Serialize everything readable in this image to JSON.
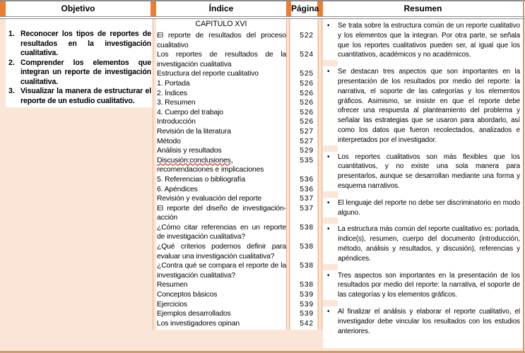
{
  "colors": {
    "page_background": "#FBE5D6",
    "accent_orange": "#ED7D31",
    "gutter_line": "#EDAE87",
    "gray_border": "#8C8C8C",
    "tan_border": "#CE9A6E",
    "spellcheck_red": "#C00000"
  },
  "header": {
    "objetivo": "Objetivo",
    "indice": "Índice",
    "pagina": "Página",
    "resumen": "Resumen"
  },
  "objetivo": {
    "items": [
      {
        "number": "1.",
        "text": "Reconocer los tipos de reportes de resultados en la investigación cualitativa."
      },
      {
        "number": "2.",
        "text": "Comprender los elementos que integran un reporte de investigación cualitativa."
      },
      {
        "number": "3.",
        "text": "Visualizar la manera de estructurar el reporte de un estudio cualitativo."
      }
    ]
  },
  "indice": {
    "chapter_title": "CAPITULO XVI",
    "entries": [
      {
        "text": "El reporte de resultados del proceso cualitativo",
        "page": "522"
      },
      {
        "text": "Los reportes de resultados de la investigación cualitativa",
        "page": "524"
      },
      {
        "text": "Estructura del reporte cualitativo",
        "page": "525"
      },
      {
        "text": "1. Portada",
        "page": "526"
      },
      {
        "text": "2. Índices",
        "page": "526"
      },
      {
        "text": "3. Resumen",
        "page": "526"
      },
      {
        "text": "4. Cuerpo del trabajo",
        "page": "526"
      },
      {
        "text": "Introducción",
        "page": "526"
      },
      {
        "text": "Revisión de la literatura",
        "page": "527"
      },
      {
        "text": "Método",
        "page": "527"
      },
      {
        "text": "Análisis y resultados",
        "page": "529"
      },
      {
        "text": "Discusión:conclusiones, recomendaciones e implicaciones",
        "squiggle_prefix": "Discusión:conclusiones,",
        "page": "535"
      },
      {
        "text": "5. Referencias o bibliografía",
        "page": "536"
      },
      {
        "text": "6. Apéndices",
        "page": "536"
      },
      {
        "text": "Revisión y evaluación del reporte",
        "page": "537"
      },
      {
        "text": "El reporte del diseño de investigación-acción",
        "page": "537"
      },
      {
        "text": "¿Cómo citar referencias en un reporte de investigación cualitativa?",
        "page": "538"
      },
      {
        "text": "¿Qué criterios podemos definir para evaluar una investigación cualitativa?",
        "page": "538"
      },
      {
        "text": "¿Contra qué se compara el reporte de la investigación cualitativa?",
        "page": "538"
      },
      {
        "text": "Resumen",
        "page": "538"
      },
      {
        "text": "Conceptos básicos",
        "page": "539"
      },
      {
        "text": "Ejercicios",
        "page": "539"
      },
      {
        "text": "Ejemplos desarrollados",
        "page": "539"
      },
      {
        "text": "Los investigadores opinan",
        "page": "542"
      }
    ]
  },
  "resumen": {
    "bullet_char": "•",
    "bullets": [
      "Se trata sobre la estructura común de un reporte cualitativo y los elementos que la integran. Por otra parte, se señala que los reportes cualitativos pueden ser, al igual que los cuantitativos, académicos y no académicos.",
      "Se destacan tres aspectos que son importantes en la presentación de los resultados por medio del reporte: la narrativa, el soporte de las categorías y los elementos gráficos. Asimismo, se insiste en que el reporte debe ofrecer una respuesta al planteamiento del problema y señalar las estrategias que se usaron para abordarlo, así como los datos que fueron recolectados, analizados e interpretados por el investigador.",
      "Los reportes cualitativos son más flexibles que los cuantitativos, y no existe una sola manera para presentarlos, aunque se desarrollan mediante una forma y esquema narrativos.",
      "El lenguaje del reporte no debe ser discriminatorio en modo alguno.",
      "La estructura más común del reporte cualitativo es: portada, índice(s), resumen, cuerpo del documento (introducción, método, análisis y resultados, y discusión), referencias y apéndices.",
      "Tres aspectos son importantes en la presentación de los resultados por medio del reporte: la narrativa, el soporte de las categorías y los elementos gráficos.",
      "Al finalizar el análisis y elaborar el reporte cualitativo, el investigador debe vincular los resultados con los estudios anteriores."
    ]
  }
}
